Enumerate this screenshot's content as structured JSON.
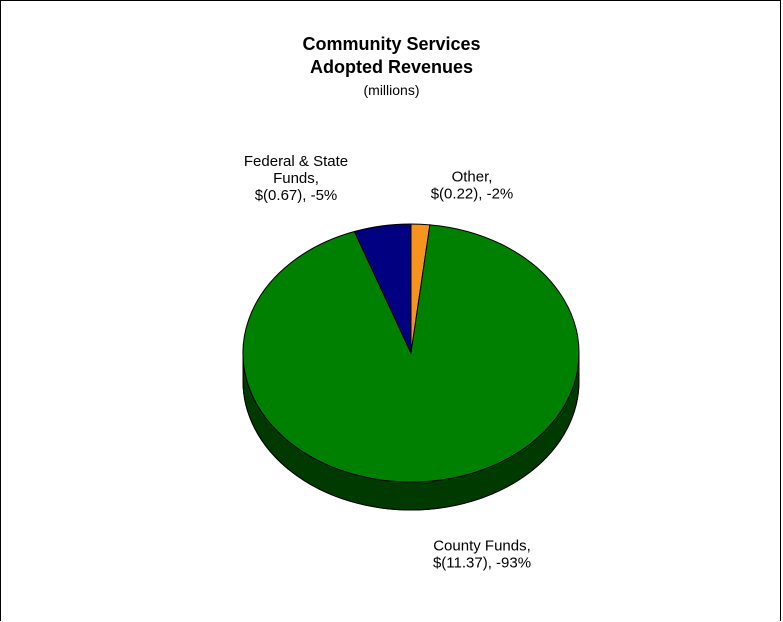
{
  "chart_data": {
    "type": "pie",
    "title": "Community Services",
    "title_line2": "Adopted Revenues",
    "subtitle": "(millions)",
    "slices": [
      {
        "name": "Other",
        "value": -0.22,
        "percent": -2,
        "color": "#F7941D",
        "label_lines": [
          "Other,",
          "$(0.22), -2%"
        ]
      },
      {
        "name": "County Funds",
        "value": -11.37,
        "percent": -93,
        "color": "#008000",
        "label_lines": [
          "County Funds,",
          "$(11.37), -93%"
        ]
      },
      {
        "name": "Federal & State Funds",
        "value": -0.67,
        "percent": -5,
        "color": "#000080",
        "label_lines": [
          "Federal & State",
          "Funds,",
          "$(0.67), -5%"
        ]
      }
    ],
    "style": "3d-pie",
    "legend": "none"
  }
}
